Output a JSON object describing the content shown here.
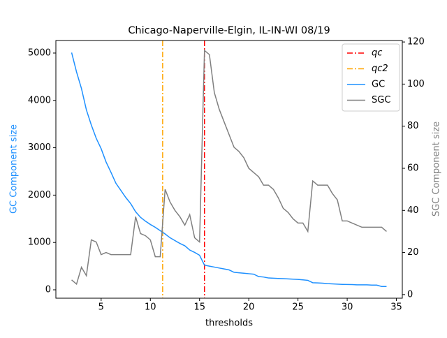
{
  "chart_data": {
    "type": "line",
    "title": "Chicago-Naperville-Elgin, IL-IN-WI 08/19",
    "x_label": "thresholds",
    "y_label": "GC Component size",
    "y2_label": "SGC Component size",
    "x": [
      2,
      2.5,
      3,
      3.5,
      4,
      4.5,
      5,
      5.5,
      6,
      6.5,
      7,
      7.5,
      8,
      8.5,
      9,
      9.5,
      10,
      10.5,
      11,
      11.5,
      12,
      12.5,
      13,
      13.5,
      14,
      14.5,
      15,
      15.5,
      16,
      16.5,
      17,
      17.5,
      18,
      18.5,
      19,
      19.5,
      20,
      20.5,
      21,
      21.5,
      22,
      22.5,
      23,
      23.5,
      24,
      24.5,
      25,
      25.5,
      26,
      26.5,
      27,
      27.5,
      28,
      28.5,
      29,
      29.5,
      30,
      30.5,
      31,
      31.5,
      32,
      32.5,
      33,
      33.5,
      34
    ],
    "series": [
      {
        "name": "GC",
        "color": "#1e90ff",
        "axis": "y",
        "values": [
          5010,
          4600,
          4250,
          3800,
          3480,
          3200,
          2980,
          2700,
          2480,
          2250,
          2100,
          1950,
          1820,
          1650,
          1530,
          1450,
          1380,
          1320,
          1250,
          1180,
          1100,
          1040,
          980,
          930,
          840,
          790,
          730,
          520,
          500,
          480,
          460,
          440,
          420,
          370,
          360,
          350,
          340,
          330,
          280,
          270,
          250,
          245,
          240,
          235,
          230,
          225,
          220,
          210,
          200,
          150,
          145,
          140,
          130,
          125,
          120,
          115,
          112,
          110,
          105,
          105,
          105,
          100,
          100,
          70,
          70
        ]
      },
      {
        "name": "SGC",
        "color": "#808080",
        "axis": "y2",
        "values": [
          7,
          5,
          13,
          9,
          26,
          25,
          19,
          20,
          19,
          19,
          19,
          19,
          19,
          37,
          29,
          28,
          26,
          18,
          18,
          50,
          44,
          40,
          37,
          33,
          38,
          27,
          25,
          116,
          114,
          96,
          88,
          82,
          76,
          70,
          68,
          65,
          60,
          58,
          56,
          52,
          52,
          50,
          46,
          41,
          39,
          36,
          34,
          34,
          30,
          54,
          52,
          52,
          52,
          48,
          45,
          35,
          35,
          34,
          33,
          32,
          32,
          32,
          32,
          32,
          30
        ]
      }
    ],
    "vlines": [
      {
        "name": "qc",
        "x": 15.5,
        "color": "#ff0000"
      },
      {
        "name": "qc2",
        "x": 11.25,
        "color": "#ffa500"
      }
    ],
    "xlim": [
      0.4,
      35.6
    ],
    "xticks": [
      5,
      10,
      15,
      20,
      25,
      30,
      35
    ],
    "ylim": [
      -177,
      5265
    ],
    "yticks": [
      0,
      1000,
      2000,
      3000,
      4000,
      5000
    ],
    "y2lim": [
      -1.7,
      120.7
    ],
    "y2ticks": [
      0,
      20,
      40,
      60,
      80,
      100,
      120
    ],
    "legend": "upper right"
  }
}
